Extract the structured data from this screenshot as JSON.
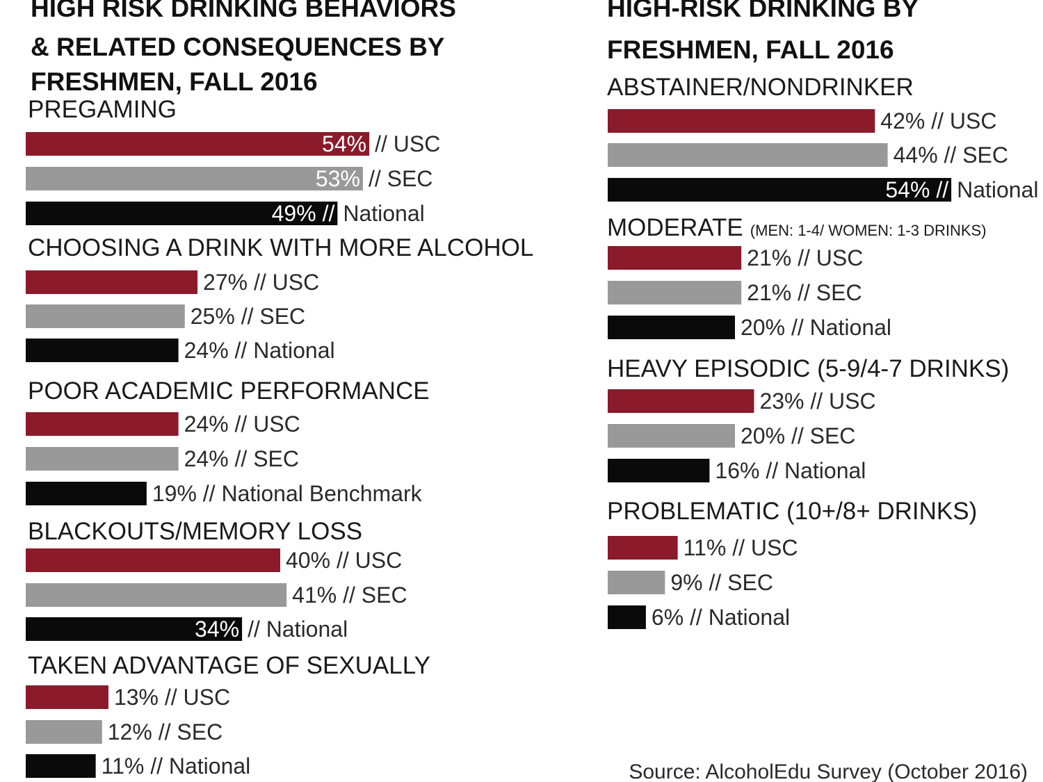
{
  "colors": {
    "USC": "#8b1a2a",
    "SEC": "#999999",
    "National": "#0a0a0a"
  },
  "source": "Source: AlcoholEdu Survey (October 2016)",
  "chart_data": [
    {
      "type": "bar",
      "orientation": "horizontal",
      "title_lines": [
        "HIGH RISK DRINKING BEHAVIORS",
        "& RELATED CONSEQUENCES BY",
        "FRESHMEN, FALL 2016"
      ],
      "unit": "%",
      "groups": [
        {
          "label": "PREGAMING",
          "note": "",
          "bars": [
            {
              "series": "USC",
              "value": 54,
              "label": "54% // USC",
              "inside_text": "54%",
              "outside_text": "// USC"
            },
            {
              "series": "SEC",
              "value": 53,
              "label": "53% // SEC",
              "inside_text": "53%",
              "outside_text": "// SEC"
            },
            {
              "series": "National",
              "value": 49,
              "label": "49% // National",
              "inside_text": "49% //",
              "outside_text": "National"
            }
          ]
        },
        {
          "label": "CHOOSING A DRINK WITH MORE ALCOHOL",
          "note": "",
          "bars": [
            {
              "series": "USC",
              "value": 27,
              "label": "27% // USC"
            },
            {
              "series": "SEC",
              "value": 25,
              "label": "25% // SEC"
            },
            {
              "series": "National",
              "value": 24,
              "label": "24% // National"
            }
          ]
        },
        {
          "label": "POOR ACADEMIC PERFORMANCE",
          "note": "",
          "bars": [
            {
              "series": "USC",
              "value": 24,
              "label": "24% // USC"
            },
            {
              "series": "SEC",
              "value": 24,
              "label": "24% // SEC"
            },
            {
              "series": "National",
              "value": 19,
              "label": "19% // National Benchmark"
            }
          ]
        },
        {
          "label": "BLACKOUTS/MEMORY LOSS",
          "note": "",
          "bars": [
            {
              "series": "USC",
              "value": 40,
              "label": "40% // USC"
            },
            {
              "series": "SEC",
              "value": 41,
              "label": "41% // SEC"
            },
            {
              "series": "National",
              "value": 34,
              "label": "34% // National",
              "inside_text": "34%",
              "outside_text": "// National"
            }
          ]
        },
        {
          "label": "TAKEN ADVANTAGE OF SEXUALLY",
          "note": "",
          "bars": [
            {
              "series": "USC",
              "value": 13,
              "label": "13% // USC"
            },
            {
              "series": "SEC",
              "value": 12,
              "label": "12% // SEC"
            },
            {
              "series": "National",
              "value": 11,
              "label": "11% // National"
            }
          ]
        }
      ]
    },
    {
      "type": "bar",
      "orientation": "horizontal",
      "title_lines": [
        "HIGH-RISK DRINKING BY",
        "FRESHMEN, FALL 2016"
      ],
      "unit": "%",
      "groups": [
        {
          "label": "ABSTAINER/NONDRINKER",
          "note": "",
          "bars": [
            {
              "series": "USC",
              "value": 42,
              "label": "42% // USC"
            },
            {
              "series": "SEC",
              "value": 44,
              "label": "44% // SEC"
            },
            {
              "series": "National",
              "value": 54,
              "label": "54% // National",
              "inside_text": "54% //",
              "outside_text": "National"
            }
          ]
        },
        {
          "label": "MODERATE",
          "note": "(MEN: 1-4/ WOMEN: 1-3 DRINKS)",
          "bars": [
            {
              "series": "USC",
              "value": 21,
              "label": "21% // USC"
            },
            {
              "series": "SEC",
              "value": 21,
              "label": "21% // SEC"
            },
            {
              "series": "National",
              "value": 20,
              "label": "20% // National"
            }
          ]
        },
        {
          "label": "HEAVY EPISODIC (5-9/4-7 DRINKS)",
          "note": "",
          "bars": [
            {
              "series": "USC",
              "value": 23,
              "label": "23% // USC"
            },
            {
              "series": "SEC",
              "value": 20,
              "label": "20% // SEC"
            },
            {
              "series": "National",
              "value": 16,
              "label": "16% // National"
            }
          ]
        },
        {
          "label": "PROBLEMATIC (10+/8+ DRINKS)",
          "note": "",
          "bars": [
            {
              "series": "USC",
              "value": 11,
              "label": "11% // USC"
            },
            {
              "series": "SEC",
              "value": 9,
              "label": "9% // SEC"
            },
            {
              "series": "National",
              "value": 6,
              "label": "6% // National"
            }
          ]
        }
      ]
    }
  ]
}
